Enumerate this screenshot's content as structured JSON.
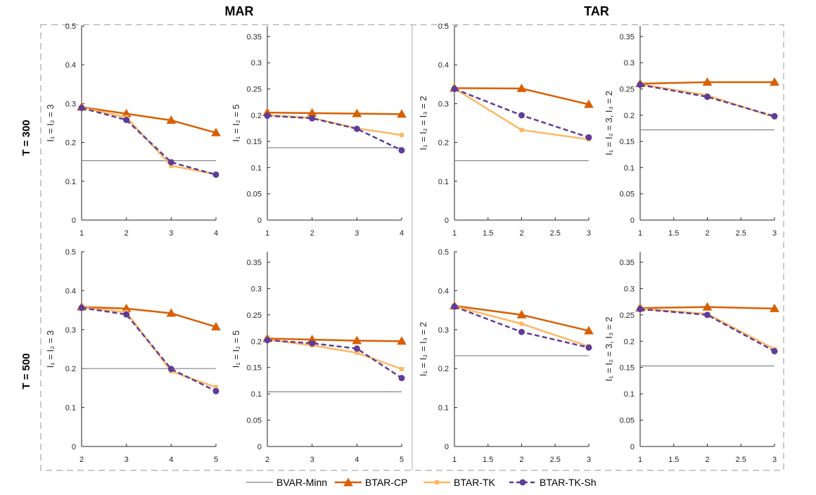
{
  "group_titles": [
    "MAR",
    "TAR"
  ],
  "row_titles": [
    "T = 300",
    "T = 500"
  ],
  "legend": [
    "BVAR-Minn",
    "BTAR-CP",
    "BTAR-TK",
    "BTAR-TK-Sh"
  ],
  "series_styles": {
    "BVAR-Minn": {
      "color": "#808080",
      "marker": "none",
      "dash": "none"
    },
    "BTAR-CP": {
      "color": "#d95f02",
      "marker": "triangle",
      "dash": "none"
    },
    "BTAR-TK": {
      "color": "#fdb863",
      "marker": "square",
      "dash": "none"
    },
    "BTAR-TK-Sh": {
      "color": "#5e3c99",
      "marker": "circle",
      "dash": "dashed"
    }
  },
  "chart_data": [
    {
      "type": "line",
      "group": "MAR",
      "row": "T = 300",
      "ylabel": "I₁ = I₂ = 3",
      "x": [
        1,
        2,
        3,
        4
      ],
      "xlim": [
        1,
        4
      ],
      "xticks": [
        "1",
        "2",
        "3",
        "4"
      ],
      "ylim": [
        0,
        0.5
      ],
      "yticks": [
        "0",
        "0.1",
        "0.2",
        "0.3",
        "0.4",
        "0.5"
      ],
      "baseline": 0.153,
      "series": [
        {
          "name": "BTAR-CP",
          "values": [
            0.291,
            0.274,
            0.257,
            0.225
          ]
        },
        {
          "name": "BTAR-TK",
          "values": [
            0.29,
            0.265,
            0.14,
            0.118
          ]
        },
        {
          "name": "BTAR-TK-Sh",
          "values": [
            0.289,
            0.258,
            0.149,
            0.117
          ]
        }
      ]
    },
    {
      "type": "line",
      "group": "MAR",
      "row": "T = 300",
      "ylabel": "I₁ = I₂ = 5",
      "x": [
        1,
        2,
        3,
        4
      ],
      "xlim": [
        1,
        4
      ],
      "xticks": [
        "1",
        "2",
        "3",
        "4"
      ],
      "ylim": [
        0,
        0.37
      ],
      "yticks": [
        "0",
        "0.05",
        "0.1",
        "0.15",
        "0.2",
        "0.25",
        "0.3",
        "0.35"
      ],
      "baseline": 0.138,
      "series": [
        {
          "name": "BTAR-CP",
          "values": [
            0.205,
            0.204,
            0.203,
            0.202
          ]
        },
        {
          "name": "BTAR-TK",
          "values": [
            0.2,
            0.195,
            0.175,
            0.162
          ]
        },
        {
          "name": "BTAR-TK-Sh",
          "values": [
            0.199,
            0.194,
            0.174,
            0.133
          ]
        }
      ]
    },
    {
      "type": "line",
      "group": "TAR",
      "row": "T = 300",
      "ylabel": "I₁ = I₂ = I₃ = 2",
      "x": [
        1,
        2,
        3
      ],
      "xlim": [
        1,
        3
      ],
      "xticks": [
        "1",
        "1.5",
        "2",
        "2.5",
        "3"
      ],
      "ylim": [
        0,
        0.5
      ],
      "yticks": [
        "0",
        "0.1",
        "0.2",
        "0.3",
        "0.4",
        "0.5"
      ],
      "baseline": 0.153,
      "series": [
        {
          "name": "BTAR-CP",
          "values": [
            0.34,
            0.339,
            0.298
          ]
        },
        {
          "name": "BTAR-TK",
          "values": [
            0.339,
            0.232,
            0.208
          ]
        },
        {
          "name": "BTAR-TK-Sh",
          "values": [
            0.338,
            0.27,
            0.213
          ]
        }
      ]
    },
    {
      "type": "line",
      "group": "TAR",
      "row": "T = 300",
      "ylabel": "I₁ = I₂ = 3, I₃ = 2",
      "x": [
        1,
        2,
        3
      ],
      "xlim": [
        1,
        3
      ],
      "xticks": [
        "1",
        "1.5",
        "2",
        "2.5",
        "3"
      ],
      "ylim": [
        0,
        0.37
      ],
      "yticks": [
        "0",
        "0.05",
        "0.1",
        "0.15",
        "0.2",
        "0.25",
        "0.3",
        "0.35"
      ],
      "baseline": 0.172,
      "series": [
        {
          "name": "BTAR-CP",
          "values": [
            0.26,
            0.263,
            0.263
          ]
        },
        {
          "name": "BTAR-TK",
          "values": [
            0.259,
            0.238,
            0.196
          ]
        },
        {
          "name": "BTAR-TK-Sh",
          "values": [
            0.258,
            0.235,
            0.198
          ]
        }
      ]
    },
    {
      "type": "line",
      "group": "MAR",
      "row": "T = 500",
      "ylabel": "I₁ = I₂ = 3",
      "x": [
        2,
        3,
        4,
        5
      ],
      "xlim": [
        2,
        5
      ],
      "xticks": [
        "2",
        "3",
        "4",
        "5"
      ],
      "ylim": [
        0,
        0.5
      ],
      "yticks": [
        "0",
        "0.1",
        "0.2",
        "0.3",
        "0.4",
        "0.5"
      ],
      "baseline": 0.2,
      "series": [
        {
          "name": "BTAR-CP",
          "values": [
            0.358,
            0.354,
            0.342,
            0.307
          ]
        },
        {
          "name": "BTAR-TK",
          "values": [
            0.357,
            0.345,
            0.193,
            0.152
          ]
        },
        {
          "name": "BTAR-TK-Sh",
          "values": [
            0.356,
            0.339,
            0.199,
            0.142
          ]
        }
      ]
    },
    {
      "type": "line",
      "group": "MAR",
      "row": "T = 500",
      "ylabel": "I₁ = I₂ = 5",
      "x": [
        2,
        3,
        4,
        5
      ],
      "xlim": [
        2,
        5
      ],
      "xticks": [
        "2",
        "3",
        "4",
        "5"
      ],
      "ylim": [
        0,
        0.37
      ],
      "yticks": [
        "0",
        "0.05",
        "0.1",
        "0.15",
        "0.2",
        "0.25",
        "0.3",
        "0.35"
      ],
      "baseline": 0.104,
      "series": [
        {
          "name": "BTAR-CP",
          "values": [
            0.205,
            0.203,
            0.201,
            0.2
          ]
        },
        {
          "name": "BTAR-TK",
          "values": [
            0.203,
            0.192,
            0.178,
            0.147
          ]
        },
        {
          "name": "BTAR-TK-Sh",
          "values": [
            0.202,
            0.196,
            0.186,
            0.13
          ]
        }
      ]
    },
    {
      "type": "line",
      "group": "TAR",
      "row": "T = 500",
      "ylabel": "I₁ = I₂ = I₃ = 2",
      "x": [
        1,
        2,
        3
      ],
      "xlim": [
        1,
        3
      ],
      "xticks": [
        "1",
        "1.5",
        "2",
        "2.5",
        "3"
      ],
      "ylim": [
        0,
        0.5
      ],
      "yticks": [
        "0",
        "0.1",
        "0.2",
        "0.3",
        "0.4",
        "0.5"
      ],
      "baseline": 0.233,
      "series": [
        {
          "name": "BTAR-CP",
          "values": [
            0.361,
            0.338,
            0.297
          ]
        },
        {
          "name": "BTAR-TK",
          "values": [
            0.36,
            0.315,
            0.257
          ]
        },
        {
          "name": "BTAR-TK-Sh",
          "values": [
            0.359,
            0.294,
            0.254
          ]
        }
      ]
    },
    {
      "type": "line",
      "group": "TAR",
      "row": "T = 500",
      "ylabel": "I₁ = I₂ = 3, I₃ = 2",
      "x": [
        1,
        2,
        3
      ],
      "xlim": [
        1,
        3
      ],
      "xticks": [
        "1",
        "1.5",
        "2",
        "2.5",
        "3"
      ],
      "ylim": [
        0,
        0.37
      ],
      "yticks": [
        "0",
        "0.05",
        "0.1",
        "0.15",
        "0.2",
        "0.25",
        "0.3",
        "0.35"
      ],
      "baseline": 0.153,
      "series": [
        {
          "name": "BTAR-CP",
          "values": [
            0.263,
            0.265,
            0.262
          ]
        },
        {
          "name": "BTAR-TK",
          "values": [
            0.262,
            0.252,
            0.185
          ]
        },
        {
          "name": "BTAR-TK-Sh",
          "values": [
            0.261,
            0.25,
            0.181
          ]
        }
      ]
    }
  ]
}
